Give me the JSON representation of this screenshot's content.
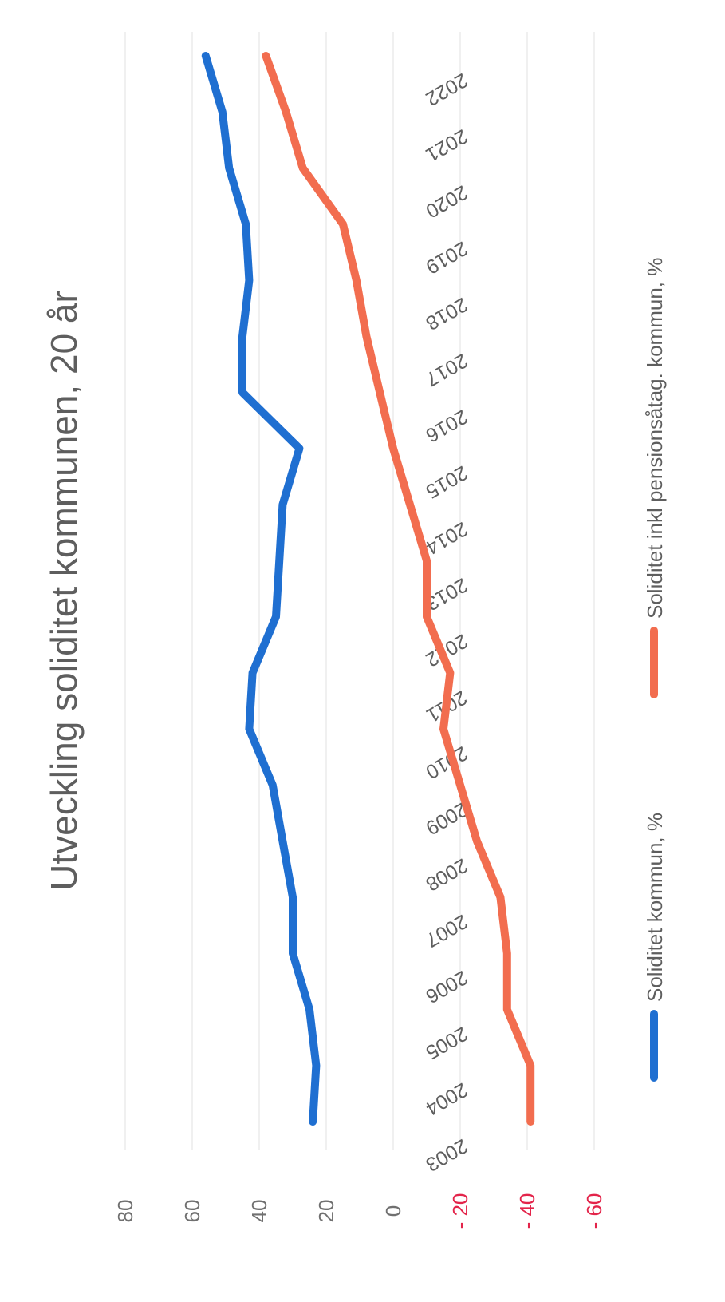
{
  "chart_data": {
    "type": "line",
    "title": "Utveckling soliditet kommunen,  20 år",
    "categories": [
      "2003",
      "2004",
      "2005",
      "2006",
      "2007",
      "2008",
      "2009",
      "2010",
      "2011",
      "2012",
      "2013",
      "2014",
      "2015",
      "2016",
      "2017",
      "2018",
      "2019",
      "2020",
      "2021",
      "2022"
    ],
    "ylim": [
      -60,
      80
    ],
    "yticks": [
      80,
      60,
      40,
      20,
      0,
      -20,
      -40,
      -60
    ],
    "ytick_labels": [
      "80",
      "60",
      "40",
      "20",
      "0",
      "- 20",
      "- 40",
      "- 60"
    ],
    "grid": true,
    "legend_position": "bottom",
    "series": [
      {
        "name": "Soliditet kommun, %",
        "color": "#1f6fd1",
        "values": [
          24,
          23,
          25,
          30,
          30,
          33,
          36,
          43,
          42,
          35,
          34,
          33,
          28,
          45,
          45,
          43,
          44,
          49,
          51,
          56
        ]
      },
      {
        "name": "Soliditet inkl pensionsåtag. kommun, %",
        "color": "#f26d4f",
        "values": [
          -41,
          -41,
          -34,
          -34,
          -32,
          -25,
          -20,
          -15,
          -17,
          -10,
          -10,
          -5,
          0,
          4,
          8,
          11,
          15,
          27,
          32,
          38
        ]
      }
    ],
    "colors": {
      "positive_tick": "#707070",
      "negative_tick": "#e3244a",
      "title": "#5e5e5e"
    }
  }
}
